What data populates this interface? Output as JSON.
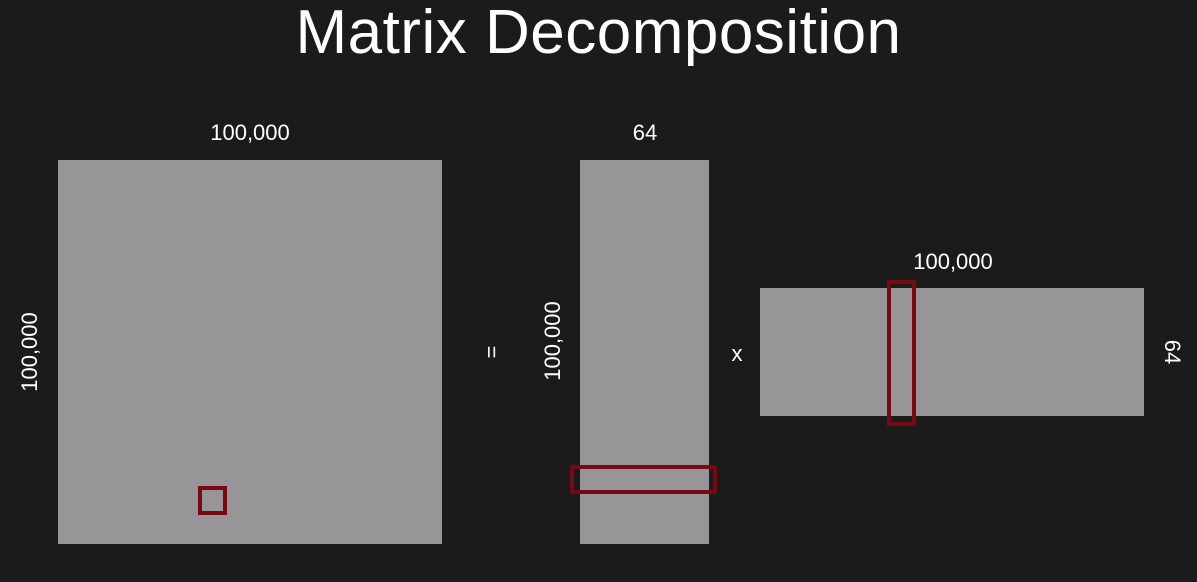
{
  "title": "Matrix Decomposition",
  "colors": {
    "background": "#1b1b1b",
    "matrix_fill": "#979597",
    "highlight": "#7a0812",
    "text": "#ffffff"
  },
  "matrix_a": {
    "top_label": "100,000",
    "side_label": "100,000"
  },
  "operators": {
    "equals": "=",
    "times": "x"
  },
  "matrix_b": {
    "top_label": "64",
    "side_label": "100,000"
  },
  "matrix_c": {
    "top_label": "100,000",
    "side_label": "64"
  }
}
